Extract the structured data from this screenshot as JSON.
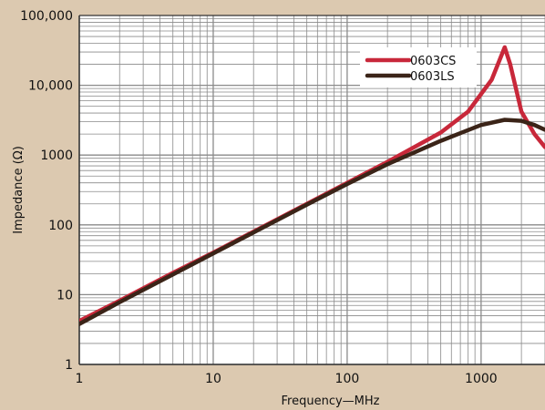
{
  "chart_data": {
    "type": "line",
    "xlabel": "Frequency—MHz",
    "ylabel": "Impedance (Ω)",
    "x_scale": "log",
    "y_scale": "log",
    "xlim": [
      1,
      3000
    ],
    "ylim": [
      1,
      100000
    ],
    "x_ticks": [
      {
        "value": 1,
        "label": "1"
      },
      {
        "value": 10,
        "label": "10"
      },
      {
        "value": 100,
        "label": "100"
      },
      {
        "value": 1000,
        "label": "1000"
      }
    ],
    "y_ticks": [
      {
        "value": 1,
        "label": "1"
      },
      {
        "value": 10,
        "label": "10"
      },
      {
        "value": 100,
        "label": "100"
      },
      {
        "value": 1000,
        "label": "1000"
      },
      {
        "value": 10000,
        "label": "10,000"
      },
      {
        "value": 100000,
        "label": "100,000"
      }
    ],
    "grid": true,
    "legend_position": "top-right",
    "series": [
      {
        "name": "0603CS",
        "color": "#c8283a",
        "points": [
          [
            1,
            4.2
          ],
          [
            2,
            8.2
          ],
          [
            5,
            20.5
          ],
          [
            10,
            40
          ],
          [
            20,
            80
          ],
          [
            50,
            200
          ],
          [
            100,
            400
          ],
          [
            200,
            800
          ],
          [
            500,
            2100
          ],
          [
            800,
            4200
          ],
          [
            1200,
            12000
          ],
          [
            1500,
            35000
          ],
          [
            1650,
            20000
          ],
          [
            2000,
            4200
          ],
          [
            2500,
            2000
          ],
          [
            3000,
            1300
          ]
        ]
      },
      {
        "name": "0603LS",
        "color": "#3b2418",
        "points": [
          [
            1,
            3.8
          ],
          [
            2,
            7.8
          ],
          [
            5,
            19.5
          ],
          [
            10,
            39
          ],
          [
            20,
            78
          ],
          [
            50,
            195
          ],
          [
            100,
            385
          ],
          [
            200,
            740
          ],
          [
            500,
            1600
          ],
          [
            1000,
            2700
          ],
          [
            1500,
            3200
          ],
          [
            2000,
            3100
          ],
          [
            2500,
            2700
          ],
          [
            3000,
            2300
          ]
        ]
      }
    ]
  }
}
